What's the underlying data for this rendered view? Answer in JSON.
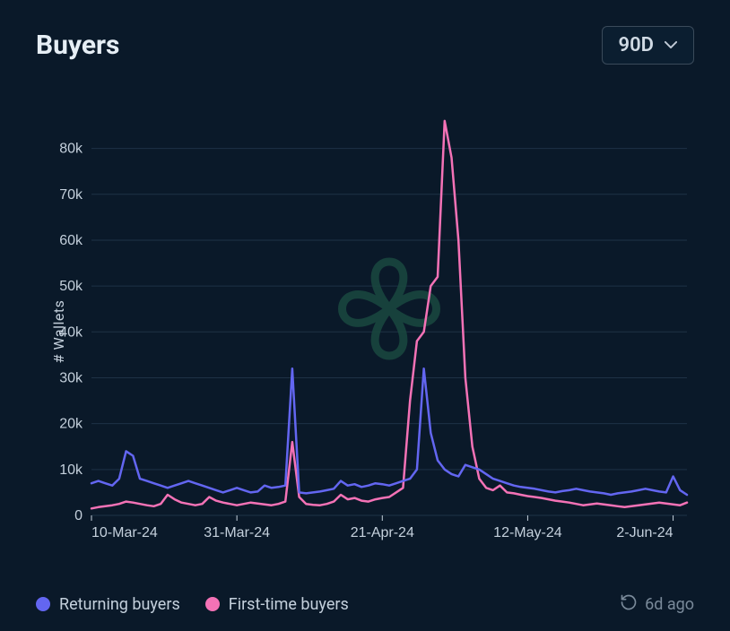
{
  "header": {
    "title": "Buyers",
    "range_selected": "90D"
  },
  "chart": {
    "type": "line",
    "background_color": "#0a1929",
    "grid_color": "#1e3246",
    "axis_color": "#1e3246",
    "tick_color": "#c4d0dc",
    "tick_fontsize": 16,
    "y_label": "# Wallets",
    "y_label_fontsize": 16,
    "y_label_color": "#c4d0dc",
    "ylim": [
      0,
      85000
    ],
    "ytick_step": 10000,
    "yticks": [
      0,
      10000,
      20000,
      30000,
      40000,
      50000,
      60000,
      70000,
      80000
    ],
    "ytick_labels": [
      "0",
      "10k",
      "20k",
      "30k",
      "40k",
      "50k",
      "60k",
      "70k",
      "80k"
    ],
    "x_categories": [
      "10-Mar-24",
      "31-Mar-24",
      "21-Apr-24",
      "12-May-24",
      "2-Jun-24"
    ],
    "x_tick_indices": [
      0,
      21,
      42,
      63,
      84
    ],
    "n_points": 87,
    "line_width": 2.5,
    "watermark_color": "#18463e",
    "series": {
      "returning": {
        "label": "Returning buyers",
        "color": "#6366f1",
        "values": [
          7000,
          7500,
          7000,
          6500,
          8000,
          14000,
          13000,
          8000,
          7500,
          7000,
          6500,
          6000,
          6500,
          7000,
          7500,
          7000,
          6500,
          6000,
          5500,
          5000,
          5500,
          6000,
          5500,
          5000,
          5200,
          6500,
          6000,
          6200,
          6500,
          32000,
          5000,
          4800,
          5000,
          5200,
          5500,
          5800,
          7500,
          6500,
          6800,
          6200,
          6500,
          7000,
          6800,
          6500,
          7000,
          7500,
          8000,
          10000,
          32000,
          18000,
          12000,
          10000,
          9000,
          8500,
          11000,
          10500,
          10000,
          9000,
          8000,
          7500,
          7000,
          6500,
          6200,
          6000,
          5800,
          5500,
          5200,
          5000,
          5300,
          5500,
          5800,
          5500,
          5200,
          5000,
          4800,
          4500,
          4800,
          5000,
          5200,
          5500,
          5800,
          5500,
          5200,
          5000,
          8500,
          5500,
          4500
        ]
      },
      "firsttime": {
        "label": "First-time buyers",
        "color": "#f472b6",
        "values": [
          1500,
          1800,
          2000,
          2200,
          2500,
          3000,
          2800,
          2500,
          2200,
          2000,
          2500,
          4500,
          3500,
          2800,
          2500,
          2200,
          2500,
          4000,
          3200,
          2800,
          2500,
          2200,
          2500,
          2800,
          2600,
          2400,
          2200,
          2500,
          3000,
          16000,
          4000,
          2500,
          2300,
          2200,
          2500,
          3000,
          4500,
          3500,
          3800,
          3200,
          3000,
          3500,
          3800,
          4000,
          5000,
          6000,
          25000,
          38000,
          40000,
          50000,
          52000,
          86000,
          78000,
          60000,
          30000,
          15000,
          8000,
          6000,
          5500,
          6500,
          5000,
          4800,
          4500,
          4200,
          4000,
          3800,
          3500,
          3200,
          3000,
          2800,
          2500,
          2200,
          2400,
          2600,
          2400,
          2200,
          2000,
          1800,
          2000,
          2200,
          2400,
          2600,
          2800,
          2600,
          2400,
          2200,
          2800
        ]
      }
    }
  },
  "legend": {
    "items": [
      {
        "key": "returning",
        "label": "Returning buyers",
        "color": "#6366f1"
      },
      {
        "key": "firsttime",
        "label": "First-time buyers",
        "color": "#f472b6"
      }
    ]
  },
  "updated": {
    "label": "6d ago"
  }
}
